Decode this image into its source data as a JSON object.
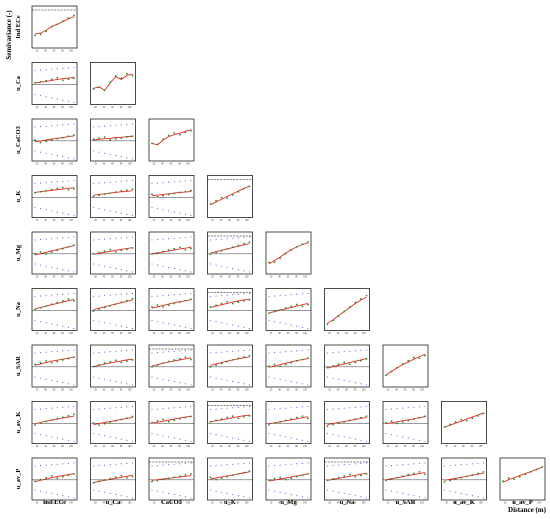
{
  "figure": {
    "ylabel": "Semivariance (-)",
    "xlabel": "Distance (m)"
  },
  "chart_data": {
    "type": "scatter",
    "layout": "lower-triangular matrix of variograms and cross-variograms",
    "variables": [
      "Ind ECe",
      "u_Ca",
      "CaCO3",
      "u_K",
      "u_Mg",
      "u_Na",
      "u_SAR",
      "u_av_K",
      "u_av_P"
    ],
    "row_labels": [
      "Ind ECe",
      "u_Ca",
      "u_CaCO3",
      "u_K",
      "u_Mg",
      "u_Na",
      "u_SAR",
      "u_av_K",
      "u_av_P"
    ],
    "col_labels": [
      "Ind ECe",
      "u_Ca",
      "CaCO3",
      "u_K",
      "u_Mg",
      "u_Na",
      "u_SAR",
      "u_av_K",
      "u_av_P"
    ],
    "x_ticks": [
      "20",
      "40",
      "60",
      "80",
      "100"
    ],
    "series_styles": {
      "experimental": "#2e8b2e",
      "fitted_model": "#e8281e",
      "envelope": "#4a4ad8",
      "reference_line": "#000000"
    },
    "cells": [
      {
        "row": 0,
        "col": 0,
        "y": [
          0.3,
          0.32,
          0.4,
          0.52,
          0.58,
          0.66,
          0.74,
          0.8
        ],
        "dashed": true
      },
      {
        "row": 1,
        "col": 0,
        "y": [
          0.52,
          0.54,
          0.56,
          0.59,
          0.62,
          0.64,
          0.66,
          0.68
        ],
        "env": true
      },
      {
        "row": 1,
        "col": 1,
        "y": [
          0.36,
          0.4,
          0.3,
          0.52,
          0.7,
          0.62,
          0.74,
          0.78
        ]
      },
      {
        "row": 2,
        "col": 0,
        "y": [
          0.45,
          0.47,
          0.5,
          0.53,
          0.55,
          0.57,
          0.6,
          0.62
        ],
        "env": true
      },
      {
        "row": 2,
        "col": 1,
        "y": [
          0.5,
          0.52,
          0.54,
          0.55,
          0.57,
          0.58,
          0.6,
          0.61
        ],
        "env": true
      },
      {
        "row": 2,
        "col": 2,
        "y": [
          0.4,
          0.36,
          0.5,
          0.6,
          0.66,
          0.7,
          0.76,
          0.8
        ]
      },
      {
        "row": 3,
        "col": 0,
        "y": [
          0.62,
          0.64,
          0.66,
          0.68,
          0.7,
          0.72,
          0.74,
          0.76
        ],
        "env": true
      },
      {
        "row": 3,
        "col": 1,
        "y": [
          0.54,
          0.56,
          0.58,
          0.6,
          0.62,
          0.64,
          0.65,
          0.67
        ],
        "env": true
      },
      {
        "row": 3,
        "col": 2,
        "y": [
          0.52,
          0.54,
          0.56,
          0.58,
          0.6,
          0.62,
          0.63,
          0.65
        ],
        "env": true
      },
      {
        "row": 3,
        "col": 3,
        "y": [
          0.26,
          0.34,
          0.42,
          0.5,
          0.58,
          0.66,
          0.74,
          0.8
        ],
        "dashed": true
      },
      {
        "row": 4,
        "col": 0,
        "y": [
          0.44,
          0.48,
          0.52,
          0.56,
          0.6,
          0.64,
          0.68,
          0.72
        ],
        "env": true
      },
      {
        "row": 4,
        "col": 1,
        "y": [
          0.46,
          0.49,
          0.52,
          0.55,
          0.58,
          0.61,
          0.63,
          0.66
        ],
        "env": true
      },
      {
        "row": 4,
        "col": 2,
        "y": [
          0.48,
          0.5,
          0.53,
          0.56,
          0.59,
          0.62,
          0.64,
          0.67
        ],
        "env": true
      },
      {
        "row": 4,
        "col": 3,
        "y": [
          0.5,
          0.54,
          0.58,
          0.62,
          0.66,
          0.7,
          0.74,
          0.78
        ],
        "env": true,
        "dashed": true
      },
      {
        "row": 4,
        "col": 4,
        "y": [
          0.18,
          0.28,
          0.38,
          0.5,
          0.6,
          0.68,
          0.75,
          0.8
        ]
      },
      {
        "row": 5,
        "col": 0,
        "y": [
          0.52,
          0.56,
          0.6,
          0.64,
          0.68,
          0.72,
          0.76,
          0.8
        ],
        "env": true
      },
      {
        "row": 5,
        "col": 1,
        "y": [
          0.5,
          0.54,
          0.58,
          0.62,
          0.66,
          0.7,
          0.74,
          0.78
        ],
        "env": true
      },
      {
        "row": 5,
        "col": 2,
        "y": [
          0.54,
          0.58,
          0.62,
          0.66,
          0.7,
          0.73,
          0.76,
          0.79
        ],
        "env": true
      },
      {
        "row": 5,
        "col": 3,
        "y": [
          0.56,
          0.6,
          0.64,
          0.68,
          0.72,
          0.75,
          0.78,
          0.8
        ],
        "env": true,
        "dashed": true
      },
      {
        "row": 5,
        "col": 4,
        "y": [
          0.4,
          0.44,
          0.48,
          0.52,
          0.56,
          0.6,
          0.64,
          0.68
        ],
        "env": true
      },
      {
        "row": 5,
        "col": 5,
        "y": [
          0.1,
          0.2,
          0.32,
          0.44,
          0.56,
          0.68,
          0.78,
          0.86
        ]
      },
      {
        "row": 6,
        "col": 0,
        "y": [
          0.52,
          0.56,
          0.6,
          0.64,
          0.67,
          0.7,
          0.73,
          0.76
        ],
        "env": true
      },
      {
        "row": 6,
        "col": 1,
        "y": [
          0.48,
          0.52,
          0.56,
          0.59,
          0.62,
          0.65,
          0.68,
          0.7
        ],
        "env": true
      },
      {
        "row": 6,
        "col": 2,
        "y": [
          0.5,
          0.54,
          0.58,
          0.62,
          0.65,
          0.68,
          0.71,
          0.74
        ],
        "env": true,
        "dashed": true
      },
      {
        "row": 6,
        "col": 3,
        "y": [
          0.52,
          0.56,
          0.6,
          0.64,
          0.68,
          0.71,
          0.74,
          0.77
        ],
        "env": true
      },
      {
        "row": 6,
        "col": 4,
        "y": [
          0.46,
          0.5,
          0.54,
          0.58,
          0.62,
          0.66,
          0.69,
          0.72
        ],
        "env": true
      },
      {
        "row": 6,
        "col": 5,
        "y": [
          0.44,
          0.48,
          0.52,
          0.56,
          0.6,
          0.64,
          0.68,
          0.72
        ],
        "env": true
      },
      {
        "row": 6,
        "col": 6,
        "y": [
          0.24,
          0.34,
          0.44,
          0.54,
          0.62,
          0.7,
          0.78,
          0.84
        ]
      },
      {
        "row": 7,
        "col": 0,
        "y": [
          0.46,
          0.5,
          0.54,
          0.57,
          0.6,
          0.63,
          0.66,
          0.69
        ],
        "env": true
      },
      {
        "row": 7,
        "col": 1,
        "y": [
          0.44,
          0.47,
          0.5,
          0.53,
          0.56,
          0.59,
          0.62,
          0.65
        ],
        "env": true
      },
      {
        "row": 7,
        "col": 2,
        "y": [
          0.48,
          0.51,
          0.54,
          0.57,
          0.6,
          0.63,
          0.66,
          0.68
        ],
        "env": true
      },
      {
        "row": 7,
        "col": 3,
        "y": [
          0.52,
          0.55,
          0.58,
          0.61,
          0.64,
          0.67,
          0.7,
          0.72
        ],
        "env": true,
        "dashed": true
      },
      {
        "row": 7,
        "col": 4,
        "y": [
          0.46,
          0.49,
          0.52,
          0.55,
          0.58,
          0.61,
          0.64,
          0.67
        ],
        "env": true
      },
      {
        "row": 7,
        "col": 5,
        "y": [
          0.44,
          0.47,
          0.5,
          0.53,
          0.56,
          0.59,
          0.62,
          0.65
        ],
        "env": true
      },
      {
        "row": 7,
        "col": 6,
        "y": [
          0.46,
          0.49,
          0.52,
          0.55,
          0.58,
          0.61,
          0.64,
          0.67
        ],
        "env": true
      },
      {
        "row": 7,
        "col": 7,
        "y": [
          0.36,
          0.42,
          0.48,
          0.54,
          0.6,
          0.66,
          0.72,
          0.78
        ]
      },
      {
        "row": 8,
        "col": 0,
        "y": [
          0.42,
          0.46,
          0.5,
          0.54,
          0.57,
          0.6,
          0.63,
          0.66
        ],
        "env": true
      },
      {
        "row": 8,
        "col": 1,
        "y": [
          0.4,
          0.43,
          0.46,
          0.49,
          0.52,
          0.55,
          0.58,
          0.61
        ],
        "env": true
      },
      {
        "row": 8,
        "col": 2,
        "y": [
          0.46,
          0.48,
          0.5,
          0.52,
          0.54,
          0.56,
          0.58,
          0.6
        ],
        "env": true,
        "dashed": true
      },
      {
        "row": 8,
        "col": 3,
        "y": [
          0.5,
          0.53,
          0.56,
          0.59,
          0.62,
          0.65,
          0.68,
          0.71
        ],
        "env": true
      },
      {
        "row": 8,
        "col": 4,
        "y": [
          0.44,
          0.47,
          0.5,
          0.53,
          0.56,
          0.59,
          0.62,
          0.65
        ],
        "env": true
      },
      {
        "row": 8,
        "col": 5,
        "y": [
          0.46,
          0.49,
          0.52,
          0.55,
          0.58,
          0.61,
          0.64,
          0.67
        ],
        "env": true,
        "dashed": true
      },
      {
        "row": 8,
        "col": 6,
        "y": [
          0.48,
          0.51,
          0.54,
          0.57,
          0.6,
          0.63,
          0.66,
          0.69
        ],
        "env": true
      },
      {
        "row": 8,
        "col": 7,
        "y": [
          0.46,
          0.49,
          0.52,
          0.55,
          0.58,
          0.61,
          0.64,
          0.67
        ],
        "env": true
      },
      {
        "row": 8,
        "col": 8,
        "y": [
          0.4,
          0.48,
          0.54,
          0.6,
          0.66,
          0.72,
          0.78,
          0.84
        ]
      }
    ]
  }
}
